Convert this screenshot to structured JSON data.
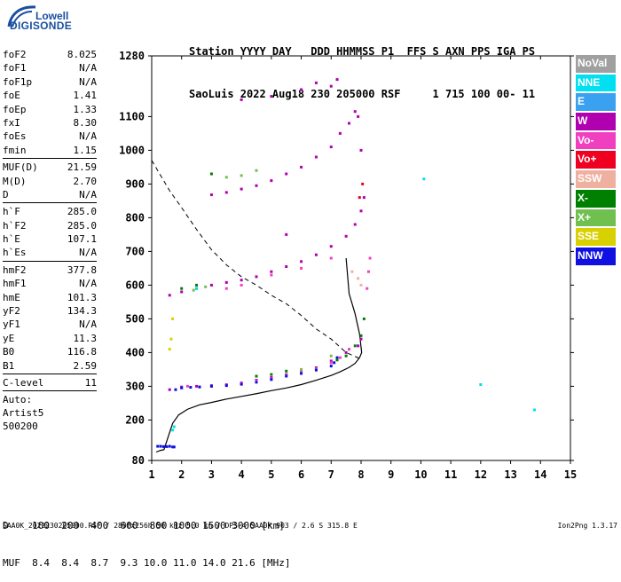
{
  "logo": {
    "brand": "Lowell",
    "product": "DIGISONDE"
  },
  "header": {
    "line1": "Station YYYY DAY   DDD HHMMSS P1  FFS S AXN PPS IGA PS",
    "line2": "SaoLuis 2022 Aug18 230 205000 RSF     1 715 100 00- 11"
  },
  "params_a": [
    {
      "k": "foF2",
      "v": "8.025"
    },
    {
      "k": "foF1",
      "v": "N/A"
    },
    {
      "k": "foF1p",
      "v": "N/A"
    },
    {
      "k": "foE",
      "v": "1.41"
    },
    {
      "k": "foEp",
      "v": "1.33"
    },
    {
      "k": "fxI",
      "v": "8.30"
    },
    {
      "k": "foEs",
      "v": "N/A"
    },
    {
      "k": "fmin",
      "v": "1.15"
    }
  ],
  "params_b": [
    {
      "k": "MUF(D)",
      "v": "21.59"
    },
    {
      "k": "M(D)",
      "v": "2.70"
    },
    {
      "k": "D",
      "v": "N/A"
    }
  ],
  "params_c": [
    {
      "k": "h`F",
      "v": "285.0"
    },
    {
      "k": "h`F2",
      "v": "285.0"
    },
    {
      "k": "h`E",
      "v": "107.1"
    },
    {
      "k": "h`Es",
      "v": "N/A"
    }
  ],
  "params_d": [
    {
      "k": "hmF2",
      "v": "377.8"
    },
    {
      "k": "hmF1",
      "v": "N/A"
    },
    {
      "k": "hmE",
      "v": "101.3"
    },
    {
      "k": "yF2",
      "v": "134.3"
    },
    {
      "k": "yF1",
      "v": "N/A"
    },
    {
      "k": "yE",
      "v": "11.3"
    },
    {
      "k": "B0",
      "v": "116.8"
    },
    {
      "k": "B1",
      "v": "2.59"
    }
  ],
  "params_e": [
    {
      "k": "C-level",
      "v": "11"
    }
  ],
  "auto": {
    "line1": "Auto:",
    "line2": "Artist5",
    "line3": "500200"
  },
  "legend": [
    {
      "label": "NoVal",
      "color": "#a0a0a0"
    },
    {
      "label": "NNE",
      "color": "#00e0f0"
    },
    {
      "label": "E",
      "color": "#3aa0f0"
    },
    {
      "label": "W",
      "color": "#b000b0"
    },
    {
      "label": "Vo-",
      "color": "#f040c0"
    },
    {
      "label": "Vo+",
      "color": "#f00020"
    },
    {
      "label": "SSW",
      "color": "#f0b0a0"
    },
    {
      "label": "X-",
      "color": "#008000"
    },
    {
      "label": "X+",
      "color": "#70c050"
    },
    {
      "label": "SSE",
      "color": "#d8d000"
    },
    {
      "label": "NNW",
      "color": "#1010e0"
    }
  ],
  "muf_table": {
    "line1": "D    100  200  400  600  800 1000 1500 3000 [km]",
    "line2": "MUF  8.4  8.4  8.7  9.3 10.0 11.0 14.0 21.6 [MHz]"
  },
  "footer": {
    "left": "SAA0K_2022230205000.RSF / 280fx256h 50 kHz 5.0 km / DPS-4 SAA0K 903 / 2.6 S 315.8 E",
    "right": "Ion2Png 1.3.17"
  },
  "chart_data": {
    "type": "scatter",
    "xlim": [
      1,
      15
    ],
    "ylim": [
      80,
      1280
    ],
    "x_ticks": [
      1,
      2,
      3,
      4,
      5,
      6,
      7,
      8,
      9,
      10,
      11,
      12,
      13,
      14,
      15
    ],
    "y_ticks": [
      80,
      200,
      300,
      400,
      500,
      600,
      700,
      800,
      900,
      1000,
      1100,
      1280
    ],
    "series": [
      {
        "name": "W",
        "color": "#b000b0",
        "x": [
          1.6,
          2.0,
          2.5,
          3.0,
          3.5,
          4.0,
          4.5,
          5.0,
          5.5,
          6.0,
          6.5,
          7.0,
          7.5,
          7.9,
          8.0,
          1.6,
          2.0,
          2.5,
          3.0,
          3.5,
          4.0,
          4.5,
          5.0,
          5.5,
          6.0,
          6.5,
          7.0,
          7.5,
          7.8,
          8.0,
          8.1,
          3.0,
          3.5,
          4.0,
          4.5,
          5.0,
          5.5,
          6.0,
          6.5,
          7.0,
          7.3,
          7.6,
          7.9,
          8.0,
          4.0,
          5.0,
          6.0,
          6.5,
          7.0,
          7.2,
          5.5,
          7.8
        ],
        "y": [
          290,
          298,
          300,
          302,
          305,
          310,
          318,
          326,
          335,
          345,
          355,
          375,
          400,
          420,
          440,
          570,
          580,
          590,
          600,
          608,
          615,
          625,
          640,
          655,
          670,
          690,
          715,
          745,
          780,
          820,
          860,
          868,
          875,
          885,
          895,
          910,
          930,
          950,
          980,
          1010,
          1050,
          1080,
          1100,
          1000,
          1150,
          1160,
          1180,
          1200,
          1190,
          1210,
          750,
          1115
        ]
      },
      {
        "name": "Vo-",
        "color": "#f040c0",
        "x": [
          2.2,
          2.6,
          3.0,
          3.5,
          4.0,
          4.5,
          5.0,
          5.5,
          6.0,
          6.5,
          7.0,
          7.3,
          7.6,
          8.3,
          8.25,
          8.2,
          7.0,
          6.0,
          5.0,
          4.0,
          3.5
        ],
        "y": [
          300,
          298,
          300,
          304,
          308,
          315,
          322,
          333,
          342,
          352,
          370,
          385,
          410,
          680,
          640,
          590,
          680,
          650,
          630,
          600,
          590
        ]
      },
      {
        "name": "NNW",
        "color": "#1010e0",
        "x": [
          1.2,
          1.3,
          1.4,
          1.5,
          1.6,
          1.7,
          1.75,
          1.8,
          2.0,
          2.3,
          2.6,
          3.0,
          3.5,
          4.0,
          4.5,
          5.0,
          5.5,
          6.0,
          6.5,
          7.0,
          7.1,
          7.2
        ],
        "y": [
          122,
          122,
          121,
          121,
          122,
          120,
          120,
          290,
          295,
          297,
          298,
          300,
          302,
          306,
          312,
          320,
          330,
          338,
          348,
          360,
          370,
          385
        ]
      },
      {
        "name": "X-",
        "color": "#008000",
        "x": [
          7.2,
          7.5,
          7.8,
          8.0,
          8.1,
          4.5,
          5.0,
          5.5,
          2.0,
          2.5,
          3.0
        ],
        "y": [
          378,
          390,
          420,
          450,
          500,
          330,
          335,
          345,
          590,
          600,
          930
        ]
      },
      {
        "name": "X+",
        "color": "#70c050",
        "x": [
          2.4,
          2.8,
          3.5,
          4.0,
          4.5,
          6.0,
          7.0
        ],
        "y": [
          585,
          595,
          920,
          925,
          940,
          350,
          390
        ]
      },
      {
        "name": "NNE",
        "color": "#00e0f0",
        "x": [
          1.7,
          1.75,
          2.5,
          12.0,
          13.8,
          10.1
        ],
        "y": [
          170,
          180,
          590,
          305,
          230,
          915
        ]
      },
      {
        "name": "SSE",
        "color": "#d8d000",
        "x": [
          1.6,
          1.65,
          1.7
        ],
        "y": [
          410,
          440,
          500
        ]
      },
      {
        "name": "SSW",
        "color": "#f0b0a0",
        "x": [
          7.7,
          7.9,
          8.0
        ],
        "y": [
          640,
          620,
          600
        ]
      },
      {
        "name": "Vo+",
        "color": "#f00020",
        "x": [
          7.95,
          8.05
        ],
        "y": [
          860,
          900
        ]
      }
    ],
    "profile_line": {
      "x": [
        1.15,
        1.3,
        1.41,
        1.55,
        1.7,
        1.9,
        2.2,
        2.6,
        3.0,
        3.5,
        4.0,
        4.5,
        5.0,
        5.5,
        6.0,
        6.5,
        7.0,
        7.3,
        7.6,
        7.8,
        7.95,
        8.02,
        7.95,
        7.8,
        7.6,
        7.5
      ],
      "y": [
        105,
        110,
        112,
        150,
        190,
        215,
        232,
        245,
        252,
        262,
        270,
        278,
        287,
        295,
        305,
        318,
        332,
        343,
        356,
        368,
        385,
        400,
        455,
        515,
        575,
        680
      ]
    },
    "dashed_curve": {
      "x": [
        1.0,
        1.3,
        1.6,
        2.0,
        2.5,
        3.0,
        3.5,
        4.0,
        4.5,
        5.0,
        5.5,
        6.0,
        6.5,
        7.0,
        7.5,
        8.02
      ],
      "y": [
        970,
        925,
        880,
        830,
        765,
        705,
        660,
        625,
        600,
        570,
        545,
        510,
        470,
        440,
        400,
        380
      ]
    }
  }
}
